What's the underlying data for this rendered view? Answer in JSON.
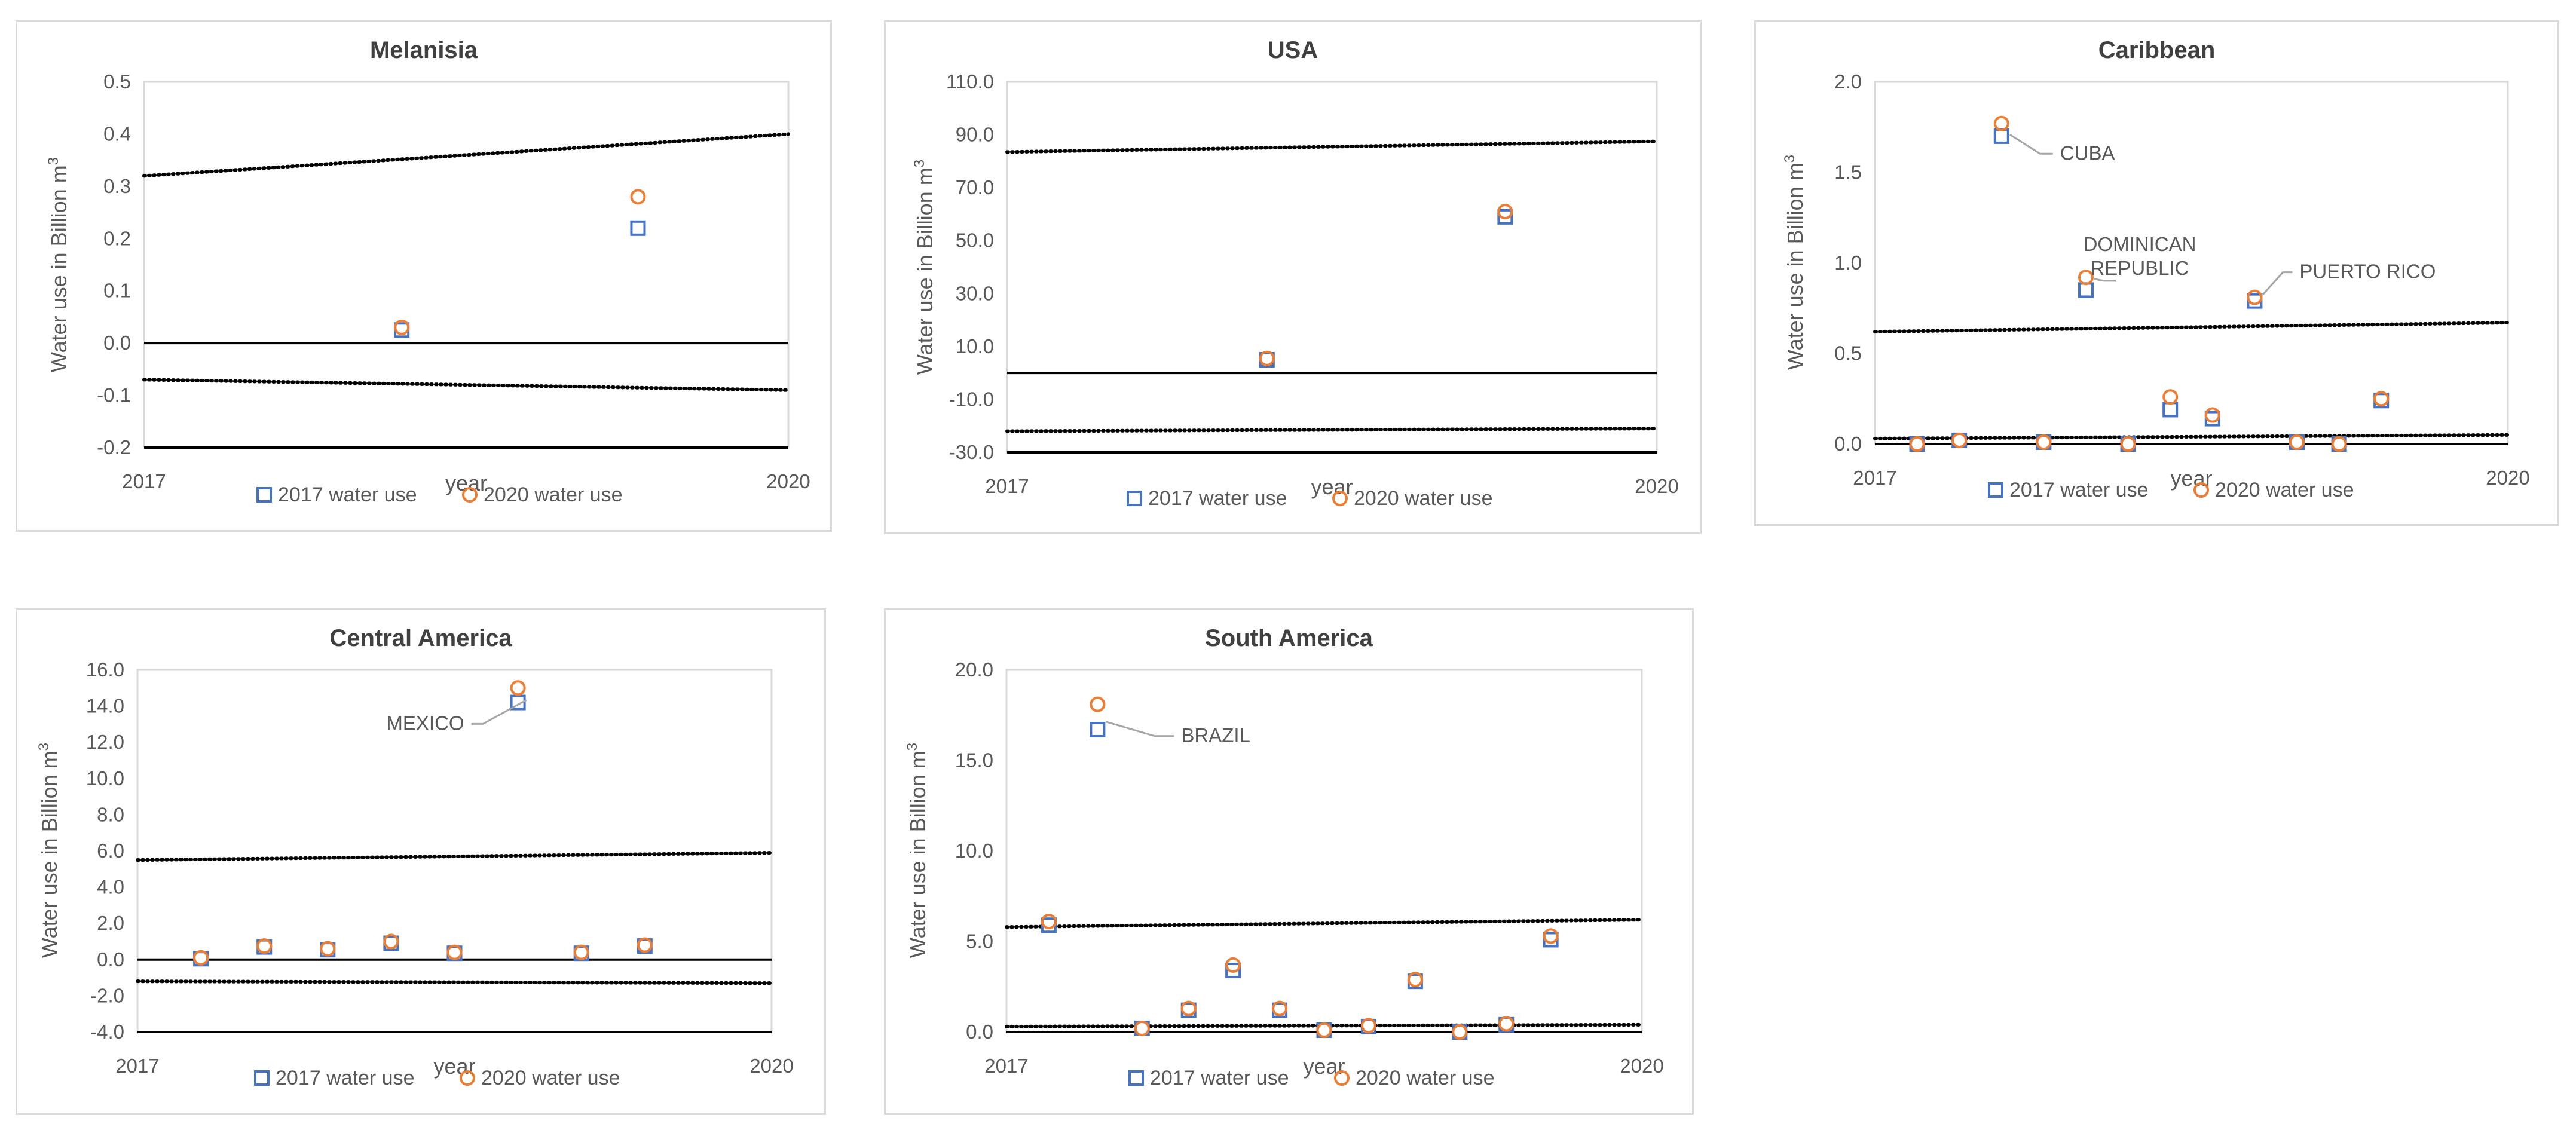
{
  "legend_icons": {
    "series_2017": "square-marker",
    "series_2020": "circle-marker"
  },
  "colors": {
    "series_2017": "#4472c4",
    "series_2020": "#ed7d31",
    "frame": "#d9d9d9",
    "axis": "#000000",
    "text": "#595959"
  },
  "chart_data": [
    {
      "type": "scatter",
      "title": "Melanisia",
      "xlabel": "year",
      "ylabel": "Water use in Billion m",
      "ylabel_sup": "3",
      "x_tick_labels": [
        "2017",
        "2020"
      ],
      "xlim": [
        0,
        3
      ],
      "ylim": [
        -0.2,
        0.5
      ],
      "y_ticks": [
        -0.2,
        -0.1,
        0.0,
        0.1,
        0.2,
        0.3,
        0.4,
        0.5
      ],
      "y_tick_labels": [
        "-0.2",
        "-0.1",
        "0.0",
        "0.1",
        "0.2",
        "0.3",
        "0.4",
        "0.5"
      ],
      "series": [
        {
          "name": "2017 water use",
          "x": [
            1.2,
            2.3
          ],
          "y": [
            0.025,
            0.22
          ]
        },
        {
          "name": "2020 water use",
          "x": [
            1.2,
            2.3
          ],
          "y": [
            0.03,
            0.28
          ]
        }
      ],
      "bounds": [
        {
          "x": [
            0,
            3
          ],
          "y": [
            0.32,
            0.4
          ]
        },
        {
          "x": [
            0,
            3
          ],
          "y": [
            -0.07,
            -0.09
          ]
        }
      ],
      "annotations": [],
      "legend_position": "bottom",
      "grid": false
    },
    {
      "type": "scatter",
      "title": "USA",
      "xlabel": "year",
      "ylabel": "Water use in Billion m",
      "ylabel_sup": "3",
      "x_tick_labels": [
        "2017",
        "2020"
      ],
      "xlim": [
        0,
        3
      ],
      "ylim": [
        -30,
        110
      ],
      "y_ticks": [
        -30,
        -10,
        10,
        30,
        50,
        70,
        90,
        110
      ],
      "y_tick_labels": [
        "-30.0",
        "-10.0",
        "10.0",
        "30.0",
        "50.0",
        "70.0",
        "90.0",
        "110.0"
      ],
      "series": [
        {
          "name": "2017 water use",
          "x": [
            1.2,
            2.3
          ],
          "y": [
            5,
            59
          ]
        },
        {
          "name": "2020 water use",
          "x": [
            1.2,
            2.3
          ],
          "y": [
            5.5,
            61
          ]
        }
      ],
      "bounds": [
        {
          "x": [
            0,
            3
          ],
          "y": [
            83.5,
            87.5
          ]
        },
        {
          "x": [
            0,
            3
          ],
          "y": [
            -22,
            -21
          ]
        }
      ],
      "annotations": [],
      "legend_position": "bottom",
      "grid": false
    },
    {
      "type": "scatter",
      "title": "Caribbean",
      "xlabel": "year",
      "ylabel": "Water use in Billion m",
      "ylabel_sup": "3",
      "x_tick_labels": [
        "2017",
        "2020"
      ],
      "xlim": [
        0,
        3
      ],
      "ylim": [
        0,
        2
      ],
      "y_ticks": [
        0.0,
        0.5,
        1.0,
        1.5,
        2.0
      ],
      "y_tick_labels": [
        "0.0",
        "0.5",
        "1.0",
        "1.5",
        "2.0"
      ],
      "series": [
        {
          "name": "2017 water use",
          "x": [
            0.2,
            0.4,
            0.6,
            0.8,
            1.0,
            1.2,
            1.4,
            1.6,
            1.8,
            2.0,
            2.2,
            2.4
          ],
          "y": [
            0.0,
            0.02,
            1.7,
            0.01,
            0.85,
            0.0,
            0.19,
            0.14,
            0.79,
            0.01,
            0.0,
            0.24
          ]
        },
        {
          "name": "2020 water use",
          "x": [
            0.2,
            0.4,
            0.6,
            0.8,
            1.0,
            1.2,
            1.4,
            1.6,
            1.8,
            2.0,
            2.2,
            2.4
          ],
          "y": [
            0.0,
            0.02,
            1.77,
            0.01,
            0.92,
            0.0,
            0.26,
            0.16,
            0.81,
            0.01,
            0.0,
            0.25
          ]
        }
      ],
      "bounds": [
        {
          "x": [
            0,
            3
          ],
          "y": [
            0.62,
            0.67
          ]
        },
        {
          "x": [
            0,
            3
          ],
          "y": [
            0.03,
            0.05
          ]
        }
      ],
      "annotations": [
        {
          "lines": [
            "CUBA"
          ],
          "point_index": 2
        },
        {
          "lines": [
            "DOMINICAN",
            "REPUBLIC"
          ],
          "point_index": 4
        },
        {
          "lines": [
            "PUERTO RICO"
          ],
          "point_index": 8
        }
      ],
      "legend_position": "bottom",
      "grid": false
    },
    {
      "type": "scatter",
      "title": "Central America",
      "xlabel": "year",
      "ylabel": "Water use in Billion m",
      "ylabel_sup": "3",
      "x_tick_labels": [
        "2017",
        "2020"
      ],
      "xlim": [
        0,
        3
      ],
      "ylim": [
        -4,
        16
      ],
      "y_ticks": [
        -4,
        -2,
        0,
        2,
        4,
        6,
        8,
        10,
        12,
        14,
        16
      ],
      "y_tick_labels": [
        "-4.0",
        "-2.0",
        "0.0",
        "2.0",
        "4.0",
        "6.0",
        "8.0",
        "10.0",
        "12.0",
        "14.0",
        "16.0"
      ],
      "series": [
        {
          "name": "2017 water use",
          "x": [
            0.3,
            0.6,
            0.9,
            1.2,
            1.5,
            1.8,
            2.1,
            2.4
          ],
          "y": [
            0.05,
            0.7,
            0.55,
            0.9,
            0.35,
            14.2,
            0.35,
            0.75
          ]
        },
        {
          "name": "2020 water use",
          "x": [
            0.3,
            0.6,
            0.9,
            1.2,
            1.5,
            1.8,
            2.1,
            2.4
          ],
          "y": [
            0.1,
            0.75,
            0.6,
            1.0,
            0.4,
            15.0,
            0.4,
            0.8
          ]
        }
      ],
      "bounds": [
        {
          "x": [
            0,
            3
          ],
          "y": [
            5.5,
            5.9
          ]
        },
        {
          "x": [
            0,
            3
          ],
          "y": [
            -1.2,
            -1.3
          ]
        }
      ],
      "annotations": [
        {
          "lines": [
            "MEXICO"
          ],
          "point_index": 5
        }
      ],
      "legend_position": "bottom",
      "grid": false
    },
    {
      "type": "scatter",
      "title": "South America",
      "xlabel": "year",
      "ylabel": "Water use in Billion m",
      "ylabel_sup": "3",
      "x_tick_labels": [
        "2017",
        "2020"
      ],
      "xlim": [
        0,
        3
      ],
      "ylim": [
        0,
        20
      ],
      "y_ticks": [
        0,
        5,
        10,
        15,
        20
      ],
      "y_tick_labels": [
        "0.0",
        "5.0",
        "10.0",
        "15.0",
        "20.0"
      ],
      "series": [
        {
          "name": "2017 water use",
          "x": [
            0.2,
            0.43,
            0.64,
            0.86,
            1.07,
            1.29,
            1.5,
            1.71,
            1.93,
            2.14,
            2.36,
            2.57
          ],
          "y": [
            5.9,
            16.7,
            0.2,
            1.2,
            3.4,
            1.2,
            0.1,
            0.3,
            2.8,
            0.0,
            0.4,
            5.1
          ]
        },
        {
          "name": "2020 water use",
          "x": [
            0.2,
            0.43,
            0.64,
            0.86,
            1.07,
            1.29,
            1.5,
            1.71,
            1.93,
            2.14,
            2.36,
            2.57
          ],
          "y": [
            6.1,
            18.1,
            0.2,
            1.3,
            3.7,
            1.3,
            0.1,
            0.35,
            2.9,
            0.0,
            0.45,
            5.3
          ]
        }
      ],
      "bounds": [
        {
          "x": [
            0,
            3
          ],
          "y": [
            5.8,
            6.2
          ]
        },
        {
          "x": [
            0,
            3
          ],
          "y": [
            0.3,
            0.4
          ]
        }
      ],
      "annotations": [
        {
          "lines": [
            "BRAZIL"
          ],
          "point_index": 1
        }
      ],
      "legend_position": "bottom",
      "grid": false
    }
  ]
}
